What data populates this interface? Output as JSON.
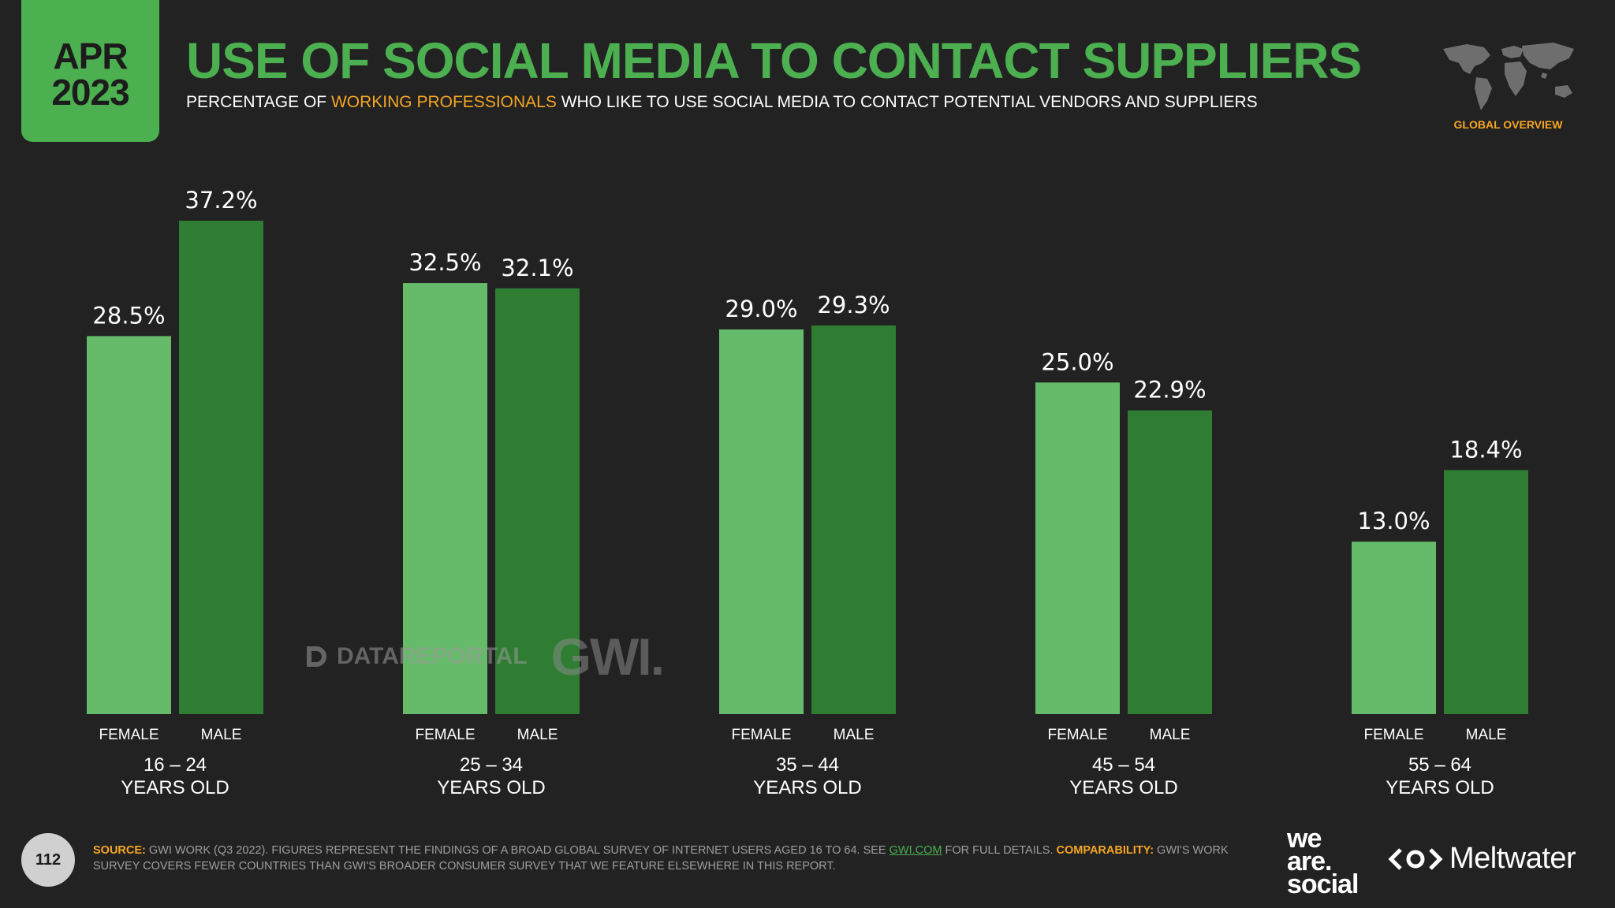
{
  "badge": {
    "month": "APR",
    "year": "2023"
  },
  "header": {
    "title": "USE OF SOCIAL MEDIA TO CONTACT SUPPLIERS",
    "subtitle_pre": "PERCENTAGE OF ",
    "subtitle_highlight": "WORKING PROFESSIONALS",
    "subtitle_post": " WHO LIKE TO USE SOCIAL MEDIA TO CONTACT POTENTIAL VENDORS AND SUPPLIERS",
    "region": "GLOBAL OVERVIEW"
  },
  "colors": {
    "accent": "#4caf50",
    "highlight": "#f5a623",
    "female": "#66bb6a",
    "male": "#2e7d32",
    "background": "#222222"
  },
  "chart_data": {
    "type": "bar",
    "title": "USE OF SOCIAL MEDIA TO CONTACT SUPPLIERS",
    "categories": [
      "16 – 24\nYEARS OLD",
      "25 – 34\nYEARS OLD",
      "35 – 44\nYEARS OLD",
      "45 – 54\nYEARS OLD",
      "55 – 64\nYEARS OLD"
    ],
    "series": [
      {
        "name": "FEMALE",
        "values": [
          28.5,
          32.5,
          29.0,
          25.0,
          13.0
        ],
        "labels": [
          "28.5%",
          "32.5%",
          "29.0%",
          "25.0%",
          "13.0%"
        ]
      },
      {
        "name": "MALE",
        "values": [
          37.2,
          32.1,
          29.3,
          22.9,
          18.4
        ],
        "labels": [
          "37.2%",
          "32.1%",
          "29.3%",
          "22.9%",
          "18.4%"
        ]
      }
    ],
    "unit": "%",
    "ylim": [
      0,
      37.2
    ],
    "xlabel": "",
    "ylabel": "",
    "grid": false
  },
  "watermark": {
    "datareportal": "DATAREPORTAL",
    "gwi": "GWI."
  },
  "footer": {
    "page_number": "112",
    "source_label": "SOURCE:",
    "source_text_1": " GWI WORK (Q3 2022). FIGURES REPRESENT THE FINDINGS OF A BROAD GLOBAL SURVEY OF INTERNET USERS AGED 16 TO 64. SEE ",
    "source_link": "GWI.COM",
    "source_text_2": " FOR FULL DETAILS. ",
    "comparability_label": "COMPARABILITY:",
    "comparability_text": " GWI'S WORK SURVEY COVERS FEWER COUNTRIES THAN GWI'S BROADER CONSUMER SURVEY THAT WE FEATURE ELSEWHERE IN THIS REPORT.",
    "logo_was_1": "we",
    "logo_was_2": "are.",
    "logo_was_3": "social",
    "logo_meltwater": "Meltwater"
  }
}
